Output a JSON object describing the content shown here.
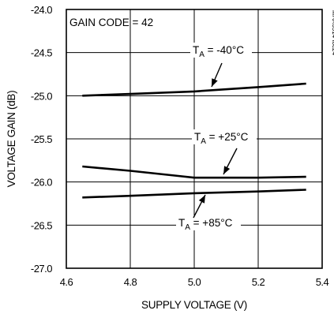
{
  "chart_data": {
    "type": "line",
    "xlabel": "SUPPLY VOLTAGE (V)",
    "ylabel": "VOLTAGE GAIN (dB)",
    "xlim": [
      4.6,
      5.4
    ],
    "ylim": [
      -27.0,
      -24.0
    ],
    "x_ticks": [
      "4.6",
      "4.8",
      "5.0",
      "5.2",
      "5.4"
    ],
    "y_ticks": [
      "-24.0",
      "-24.5",
      "-25.0",
      "-25.5",
      "-26.0",
      "-26.5",
      "-27.0"
    ],
    "grid": true,
    "series": [
      {
        "name": "TA = -40°C",
        "x": [
          4.65,
          4.8,
          5.0,
          5.2,
          5.35
        ],
        "y": [
          -25.0,
          -24.98,
          -24.95,
          -24.9,
          -24.86
        ]
      },
      {
        "name": "TA = +25°C",
        "x": [
          4.65,
          4.8,
          4.95,
          5.0,
          5.2,
          5.35
        ],
        "y": [
          -25.82,
          -25.87,
          -25.93,
          -25.95,
          -25.95,
          -25.94
        ]
      },
      {
        "name": "TA = +85°C",
        "x": [
          4.65,
          4.8,
          5.0,
          5.2,
          5.35
        ],
        "y": [
          -26.18,
          -26.16,
          -26.13,
          -26.11,
          -26.09
        ]
      }
    ],
    "annotations": {
      "gain_code": "GAIN CODE = 42",
      "labels": [
        {
          "main": "T",
          "sub": "A",
          "rest": " = -40°C"
        },
        {
          "main": "T",
          "sub": "A",
          "rest": " = +25°C"
        },
        {
          "main": "T",
          "sub": "A",
          "rest": " = +85°C"
        }
      ],
      "side_id": "MAX3514 toc24"
    }
  }
}
